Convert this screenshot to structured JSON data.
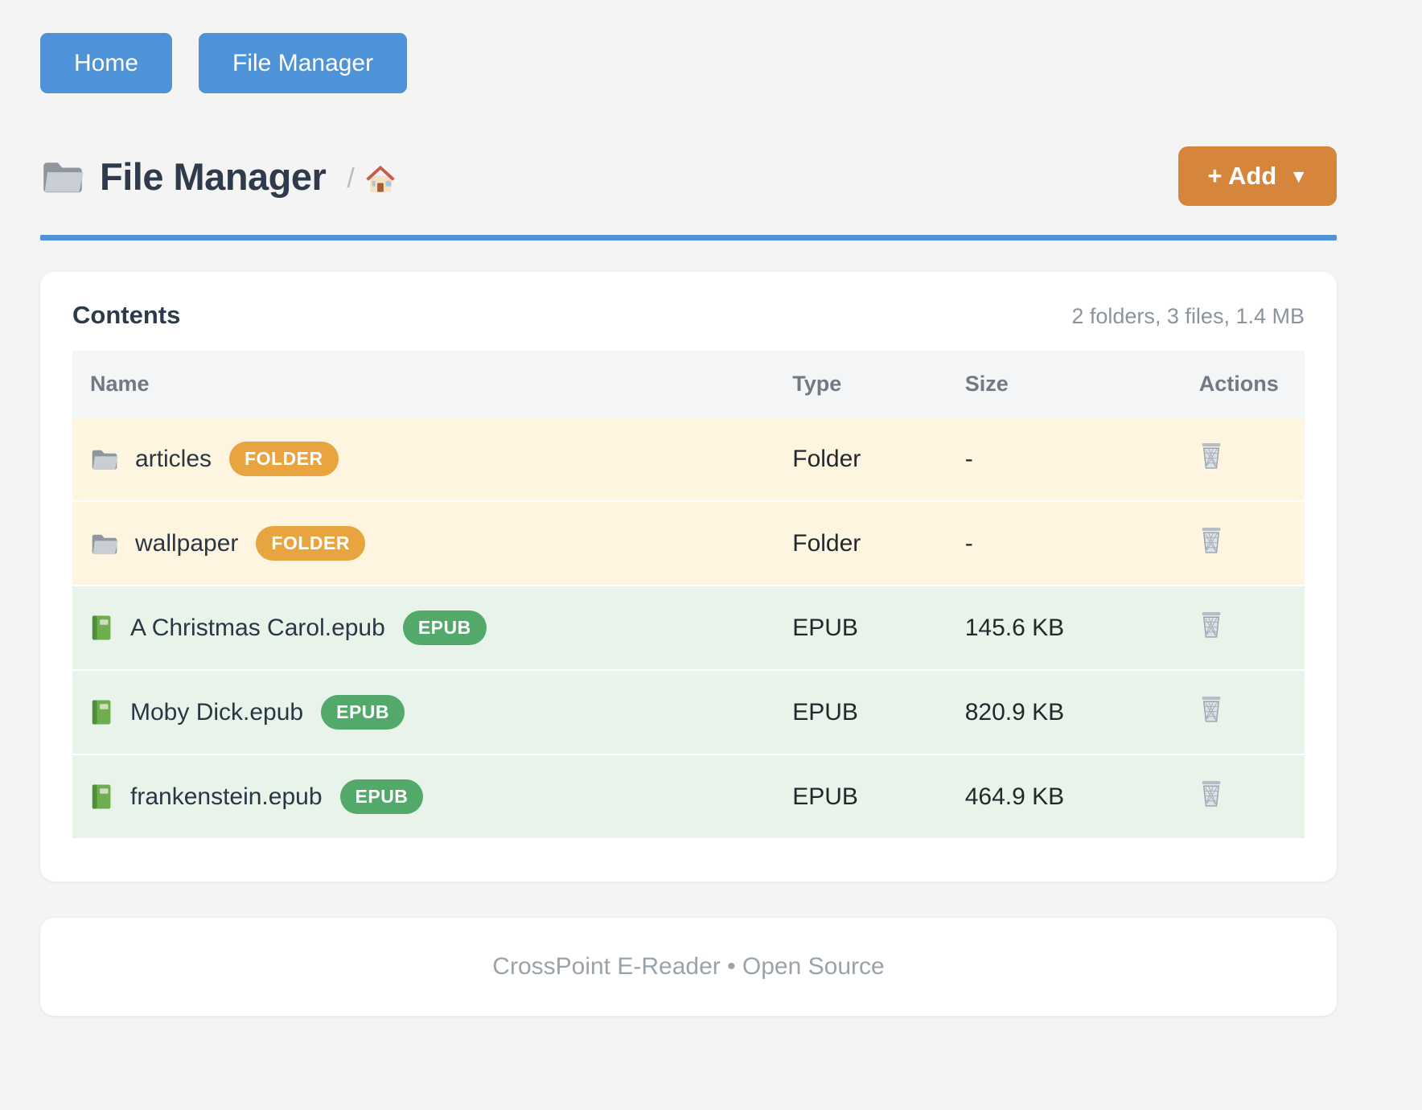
{
  "nav": {
    "home": "Home",
    "file_manager": "File Manager"
  },
  "header": {
    "title": "File Manager",
    "title_icon": "folder-icon",
    "breadcrumb_separator": "/",
    "breadcrumb_home_icon": "house-icon",
    "add_button": {
      "label": "+ Add",
      "caret": "▼"
    }
  },
  "card": {
    "title": "Contents",
    "summary": "2 folders, 3 files, 1.4 MB",
    "table": {
      "columns": [
        "Name",
        "Type",
        "Size",
        "Actions"
      ],
      "action_icon": "trash-icon",
      "rows": [
        {
          "icon": "folder-icon",
          "name": "articles",
          "badge": "FOLDER",
          "kind": "folder",
          "type": "Folder",
          "size": "-"
        },
        {
          "icon": "folder-icon",
          "name": "wallpaper",
          "badge": "FOLDER",
          "kind": "folder",
          "type": "Folder",
          "size": "-"
        },
        {
          "icon": "book-icon",
          "name": "A Christmas Carol.epub",
          "badge": "EPUB",
          "kind": "epub",
          "type": "EPUB",
          "size": "145.6 KB"
        },
        {
          "icon": "book-icon",
          "name": "Moby Dick.epub",
          "badge": "EPUB",
          "kind": "epub",
          "type": "EPUB",
          "size": "820.9 KB"
        },
        {
          "icon": "book-icon",
          "name": "frankenstein.epub",
          "badge": "EPUB",
          "kind": "epub",
          "type": "EPUB",
          "size": "464.9 KB"
        }
      ]
    }
  },
  "footer": {
    "text": "CrossPoint E-Reader • Open Source"
  },
  "colors": {
    "accent_blue": "#4e93d7",
    "accent_orange": "#d6853c",
    "badge_folder": "#e8a43e",
    "badge_epub": "#53a969",
    "row_folder_bg": "#fdf5df",
    "row_epub_bg": "#e8f3ea"
  }
}
